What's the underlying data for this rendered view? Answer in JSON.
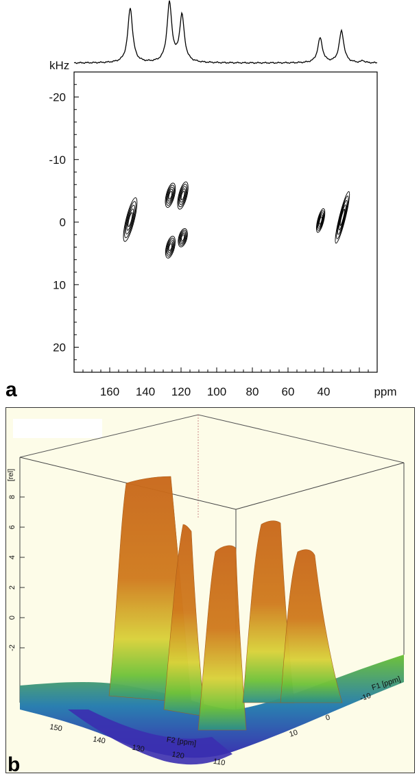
{
  "chart_data": [
    {
      "type": "contour",
      "panel_label": "a",
      "x_unit": "ppm",
      "y_unit": "kHz",
      "xlim": [
        180,
        10
      ],
      "ylim": [
        -24,
        24
      ],
      "x_ticks": [
        160,
        140,
        120,
        100,
        80,
        60,
        40
      ],
      "y_ticks": [
        -20,
        -10,
        0,
        10,
        20
      ],
      "peaks": [
        {
          "x_center": 148.5,
          "y_from": -4.0,
          "y_to": 3.2
        },
        {
          "x_center": 126.0,
          "y_from": -6.3,
          "y_to": -2.3
        },
        {
          "x_center": 119.0,
          "y_from": -6.5,
          "y_to": -2.0
        },
        {
          "x_center": 126.0,
          "y_from": 2.2,
          "y_to": 5.8
        },
        {
          "x_center": 119.0,
          "y_from": 1.0,
          "y_to": 4.0
        },
        {
          "x_center": 41.7,
          "y_from": -2.2,
          "y_to": 1.7
        },
        {
          "x_center": 29.5,
          "y_from": -5.0,
          "y_to": 3.5
        }
      ],
      "projection_peaks": [
        {
          "x": 148.5,
          "height": 1.0
        },
        {
          "x": 126.5,
          "height": 1.08
        },
        {
          "x": 119.5,
          "height": 0.85
        },
        {
          "x": 42.0,
          "height": 0.45
        },
        {
          "x": 30.0,
          "height": 0.58
        },
        {
          "x": 18.0,
          "height": 0.04
        }
      ]
    },
    {
      "type": "surface3d",
      "panel_label": "b",
      "z_label": "[rel]",
      "x_label": "F2 [ppm]",
      "y_label": "F1 [ppm]",
      "z_ticks": [
        -2,
        0,
        2,
        4,
        6,
        8
      ],
      "x_ticks": [
        150,
        140,
        130,
        120,
        110
      ],
      "y_ticks": [
        10,
        0,
        -10
      ],
      "colors": {
        "low": "#3b2fb0",
        "mid": "#6fc23a",
        "high": "#d07a1e",
        "background": "#fdfce8"
      }
    }
  ]
}
